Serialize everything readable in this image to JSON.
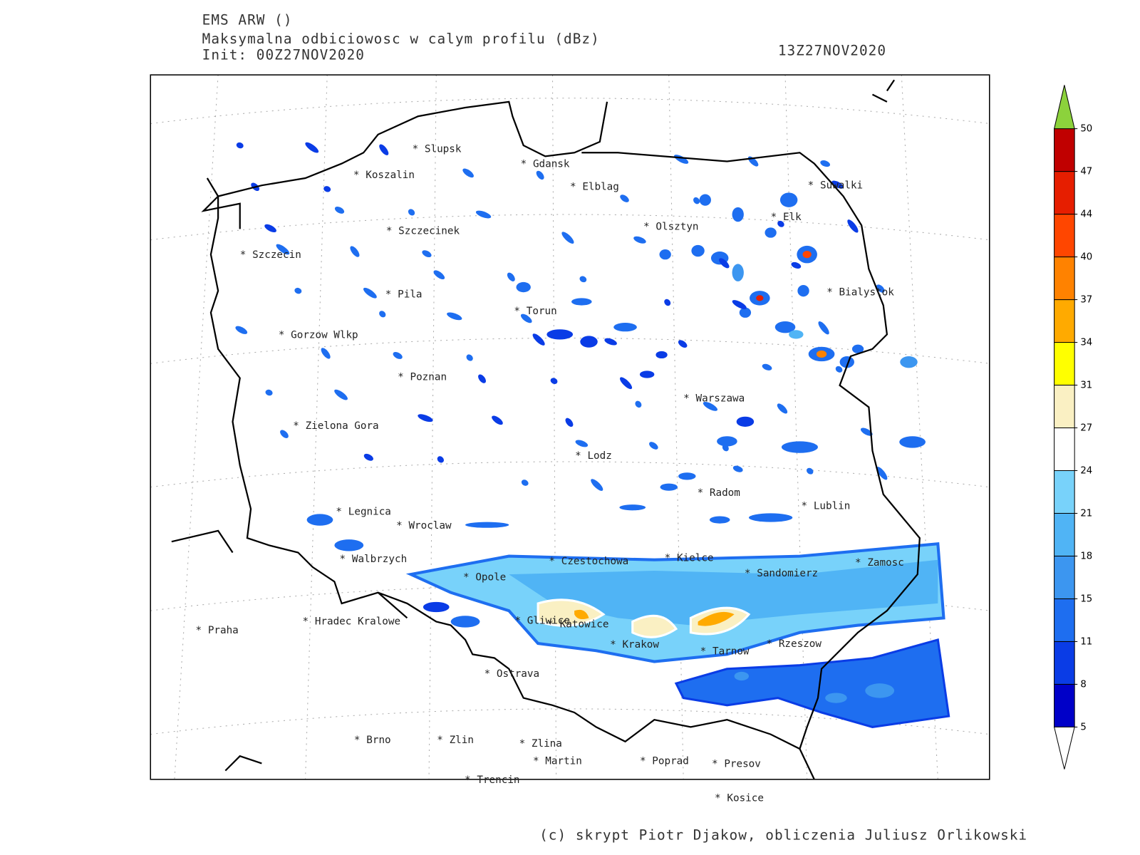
{
  "header": {
    "model": "EMS ARW ()",
    "field": "Maksymalna odbiciowosc w calym profilu (dBz)",
    "init": "Init: 00Z27NOV2020",
    "valid": "13Z27NOV2020"
  },
  "cities": [
    "Slupsk",
    "Koszalin",
    "Gdansk",
    "Elblag",
    "Suwalki",
    "Elk",
    "Olsztyn",
    "Szczecinek",
    "Szczecin",
    "Bialystok",
    "Pila",
    "Torun",
    "Gorzow Wlkp",
    "Poznan",
    "Warszawa",
    "Zielona Gora",
    "Lodz",
    "Radom",
    "Lublin",
    "Legnica",
    "Wroclaw",
    "Czestochowa",
    "Kielce",
    "Walbrzych",
    "Zamosc",
    "Opole",
    "Sandomierz",
    "Gliwice",
    "Katowice",
    "Hradec Kralowe",
    "Praha",
    "Krakow",
    "Rzeszow",
    "Tarnow",
    "Ostrava",
    "Brno",
    "Zlin",
    "Zlina",
    "Martin",
    "Poprad",
    "Presov",
    "Trencin",
    "Kosice"
  ],
  "colorbar": {
    "levels": [
      5,
      8,
      11,
      15,
      18,
      21,
      24,
      27,
      31,
      34,
      37,
      40,
      44,
      47,
      50
    ],
    "colors": [
      "#0000c8",
      "#0a3ce6",
      "#1e6ef0",
      "#3c96f0",
      "#50b4f5",
      "#78d2fa",
      "#ffffff",
      "#faf0c3",
      "#ffff00",
      "#ffaa00",
      "#ff8200",
      "#ff4600",
      "#e61e00",
      "#c00000"
    ],
    "over_color": "#8cd23c",
    "under_color": "#ffffff"
  },
  "footer": "(c) skrypt Piotr Djakow, obliczenia Juliusz Orlikowski"
}
